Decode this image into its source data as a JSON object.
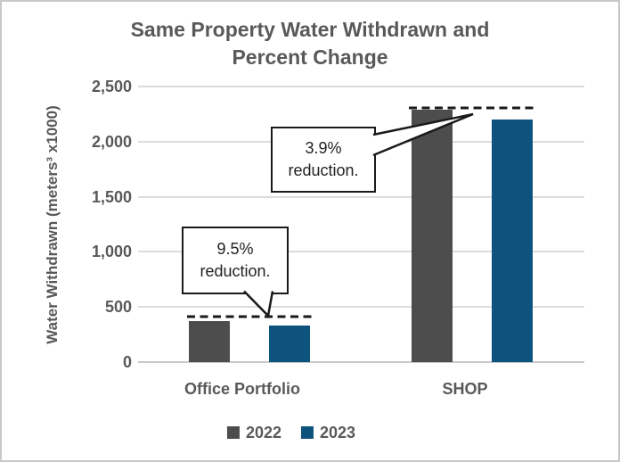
{
  "title": "Same Property Water Withdrawn and\nPercent Change",
  "chart_data": {
    "type": "bar",
    "title": "Same Property Water Withdrawn and Percent Change",
    "categories": [
      "Office Portfolio",
      "SHOP"
    ],
    "series": [
      {
        "name": "2022",
        "color": "#4d4d4d",
        "values": [
          370,
          2290
        ]
      },
      {
        "name": "2023",
        "color": "#0e537d",
        "values": [
          335,
          2200
        ]
      }
    ],
    "xlabel": "",
    "ylabel": "Water Withdrawn  (meters³ x1000)",
    "ylim": [
      0,
      2500
    ],
    "ytick_labels": [
      "2,500",
      "2,000",
      "1,500",
      "1,000",
      "500",
      "0"
    ],
    "grid": "horizontal",
    "legend_position": "bottom",
    "annotations": [
      {
        "text": "9.5%\nreduction.",
        "category": "Office Portfolio",
        "marks": "2022 level dashed line"
      },
      {
        "text": "3.9%\nreduction.",
        "category": "SHOP",
        "marks": "2022 level dashed line"
      }
    ]
  },
  "colors": {
    "text_gray": "#595959",
    "bar_2022": "#4d4d4d",
    "bar_2023": "#0e537d",
    "gridline": "#dcdcdc",
    "callout_ink": "#1a1a1a",
    "frame_border": "#c8c8c8"
  }
}
